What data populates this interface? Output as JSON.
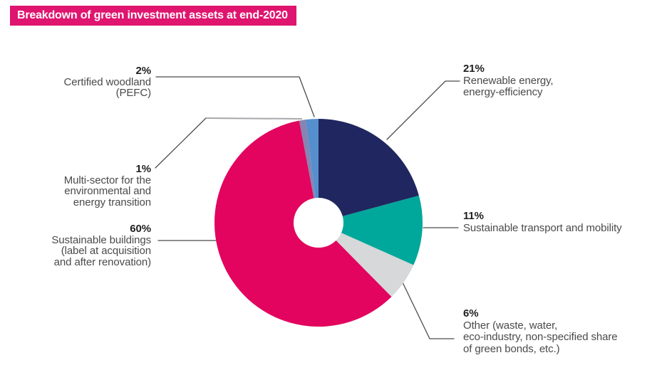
{
  "title": {
    "text": "Breakdown of green investment assets at end-2020",
    "bg_color": "#df156f",
    "text_color": "#ffffff"
  },
  "chart_data": {
    "type": "pie",
    "subtype": "donut",
    "title": "Breakdown of green investment assets at end-2020",
    "start_angle_deg": 0,
    "direction": "clockwise",
    "donut_hole_ratio": 0.24,
    "legend_position": "callout-labels",
    "slices": [
      {
        "label": "Renewable energy, energy-efficiency",
        "pct_label": "21%",
        "value": 21,
        "color": "#20265f"
      },
      {
        "label": "Sustainable transport and mobility",
        "pct_label": "11%",
        "value": 11,
        "color": "#00a79b"
      },
      {
        "label": "Other (waste, water, eco-industry, non-specified share of green bonds, etc.)",
        "pct_label": "6%",
        "value": 6,
        "color": "#d6d8d9"
      },
      {
        "label": "Sustainable buildings (label at acquisition and after renovation)",
        "pct_label": "60%",
        "value": 60,
        "color": "#e2045f"
      },
      {
        "label": "Multi-sector for the environmental and energy transition",
        "pct_label": "1%",
        "value": 1,
        "color": "#8784b1"
      },
      {
        "label": "Certified woodland (PEFC)",
        "pct_label": "2%",
        "value": 2,
        "color": "#568fcd"
      }
    ]
  },
  "callouts": {
    "woodland": {
      "pct": "2%",
      "lines": [
        "Certified woodland",
        "(PEFC)"
      ]
    },
    "multisector": {
      "pct": "1%",
      "lines": [
        "Multi-sector for the",
        "environmental and",
        "energy transition"
      ]
    },
    "buildings": {
      "pct": "60%",
      "lines": [
        "Sustainable buildings",
        "(label at acquisition",
        "and after renovation)"
      ]
    },
    "renewable": {
      "pct": "21%",
      "lines": [
        "Renewable energy,",
        "energy-efficiency"
      ]
    },
    "transport": {
      "pct": "11%",
      "lines": [
        "Sustainable transport and mobility"
      ]
    },
    "other": {
      "pct": "6%",
      "lines": [
        "Other (waste, water,",
        "eco-industry, non-specified share",
        "of green bonds, etc.)"
      ]
    }
  },
  "colors": {
    "leader_line_dark": "#4b4b4d",
    "leader_line_gray": "#a6a8ab",
    "donut_hole": "#ffffff"
  }
}
